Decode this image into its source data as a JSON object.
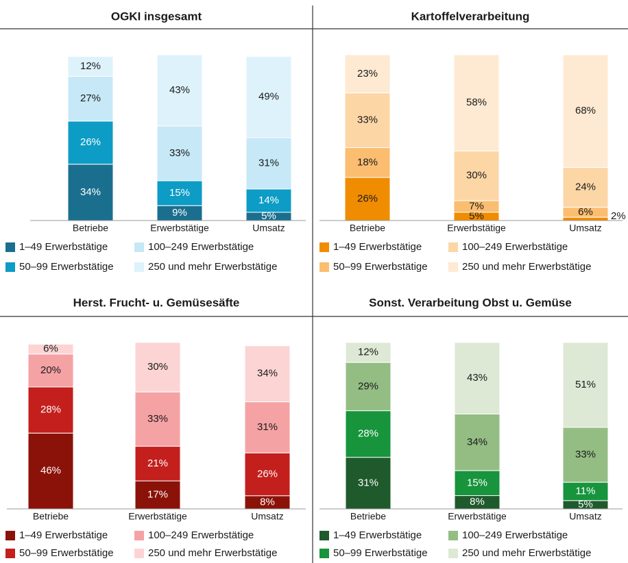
{
  "chart_data": [
    {
      "type": "bar",
      "title": "OGKI insgesamt",
      "categories": [
        "Betriebe",
        "Erwerbstätige",
        "Umsatz"
      ],
      "series": [
        {
          "name": "1–49 Erwerbstätige",
          "color": "#1b6f8e",
          "values": [
            34,
            9,
            5
          ],
          "value_labels": [
            "34%",
            "9%",
            "5%"
          ]
        },
        {
          "name": "50–99 Erwerbstätige",
          "color": "#0c9cc6",
          "values": [
            26,
            15,
            14
          ],
          "value_labels": [
            "26%",
            "15%",
            "14%"
          ]
        },
        {
          "name": "100–249 Erwerbstätige",
          "color": "#c7e8f6",
          "values": [
            27,
            33,
            31
          ],
          "value_labels": [
            "27%",
            "33%",
            "31%"
          ]
        },
        {
          "name": "250 und mehr Erwerbstätige",
          "color": "#def2fb",
          "values": [
            12,
            43,
            49
          ],
          "value_labels": [
            "12%",
            "43%",
            "49%"
          ]
        }
      ]
    },
    {
      "type": "bar",
      "title": "Kartoffelverarbeitung",
      "categories": [
        "Betriebe",
        "Erwerbstätige",
        "Umsatz"
      ],
      "series": [
        {
          "name": "1–49 Erwerbstätige",
          "color": "#f08c00",
          "values": [
            26,
            5,
            2
          ],
          "value_labels": [
            "26%",
            "5%",
            "2%"
          ]
        },
        {
          "name": "50–99 Erwerbstätige",
          "color": "#fbbd70",
          "values": [
            18,
            7,
            6
          ],
          "value_labels": [
            "18%",
            "7%",
            "6%"
          ]
        },
        {
          "name": "100–249 Erwerbstätige",
          "color": "#fdd6a6",
          "values": [
            33,
            30,
            24
          ],
          "value_labels": [
            "33%",
            "30%",
            "24%"
          ]
        },
        {
          "name": "250 und mehr Erwerbstätige",
          "color": "#feead2",
          "values": [
            23,
            58,
            68
          ],
          "value_labels": [
            "23%",
            "58%",
            "68%"
          ]
        }
      ]
    },
    {
      "type": "bar",
      "title": "Herst. Frucht- u. Gemüsesäfte",
      "categories": [
        "Betriebe",
        "Erwerbstätige",
        "Umsatz"
      ],
      "series": [
        {
          "name": "1–49 Erwerbstätige",
          "color": "#8b1209",
          "values": [
            46,
            17,
            8
          ],
          "value_labels": [
            "46%",
            "17%",
            "8%"
          ]
        },
        {
          "name": "50–99 Erwerbstätige",
          "color": "#c31f1c",
          "values": [
            28,
            21,
            26
          ],
          "value_labels": [
            "28%",
            "21%",
            "26%"
          ]
        },
        {
          "name": "100–249 Erwerbstätige",
          "color": "#f5a2a4",
          "values": [
            20,
            33,
            31
          ],
          "value_labels": [
            "20%",
            "33%",
            "31%"
          ]
        },
        {
          "name": "250 und mehr Erwerbstätige",
          "color": "#fcd4d4",
          "values": [
            6,
            30,
            34
          ],
          "value_labels": [
            "6%",
            "30%",
            "34%"
          ]
        }
      ]
    },
    {
      "type": "bar",
      "title": "Sonst. Verarbeitung Obst u. Gemüse",
      "categories": [
        "Betriebe",
        "Erwerbstätige",
        "Umsatz"
      ],
      "series": [
        {
          "name": "1–49 Erwerbstätige",
          "color": "#1f5a2d",
          "values": [
            31,
            8,
            5
          ],
          "value_labels": [
            "31%",
            "8%",
            "5%"
          ]
        },
        {
          "name": "50–99 Erwerbstätige",
          "color": "#17943c",
          "values": [
            28,
            15,
            11
          ],
          "value_labels": [
            "28%",
            "15%",
            "11%"
          ]
        },
        {
          "name": "100–249 Erwerbstätige",
          "color": "#94bd84",
          "values": [
            29,
            34,
            33
          ],
          "value_labels": [
            "29%",
            "34%",
            "33%"
          ]
        },
        {
          "name": "250 und mehr Erwerbstätige",
          "color": "#dde8d5",
          "values": [
            12,
            43,
            51
          ],
          "value_labels": [
            "12%",
            "43%",
            "51%"
          ]
        }
      ]
    }
  ]
}
